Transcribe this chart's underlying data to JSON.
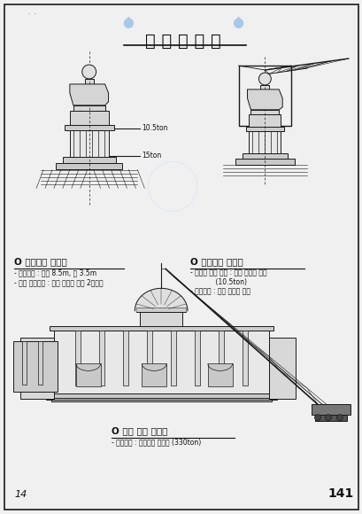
{
  "title": "철 거 계 획 도",
  "bg_color": "#e8eaf0",
  "paper_color": "#f0f0f0",
  "line_color": "#1a1a1a",
  "text_color": "#111111",
  "page_num": "141",
  "page_mark": "14",
  "label_10_5ton": "10.5ton",
  "label_15ton": "15ton",
  "section1_title": "O 첨탑해체 계획도",
  "section1_bullets": [
    "- 첨탑규격 : 높이 8.5m, 폭 3.5m",
    "- 당일 철거범위 : 사전 절단해 놓은 2개부재"
  ],
  "section2_title": "O 첨탑해체 계획도",
  "section2_bullets": [
    "- 행사시 해체 부재 : 첨탑 최상부 부재",
    "            (10.5ton)",
    "- 잔여부재 : 당일 행사후 철거"
  ],
  "section3_title": "O 장비 배치 계획도",
  "section3_bullets": [
    "- 사용장비 : 하이드로 크레인 (330ton)"
  ],
  "water_drop_color": "#a8c8e8",
  "stamp_color": "#c0d8f0"
}
